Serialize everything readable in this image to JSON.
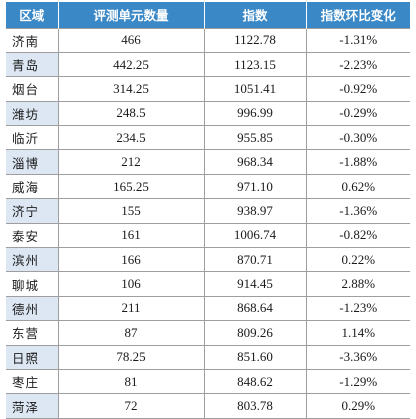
{
  "table": {
    "headers": [
      "区域",
      "评测单元数量",
      "指数",
      "指数环比变化"
    ],
    "rows": [
      [
        "济南",
        "466",
        "1122.78",
        "-1.31%"
      ],
      [
        "青岛",
        "442.25",
        "1123.15",
        "-2.23%"
      ],
      [
        "烟台",
        "314.25",
        "1051.41",
        "-0.92%"
      ],
      [
        "潍坊",
        "248.5",
        "996.99",
        "-0.29%"
      ],
      [
        "临沂",
        "234.5",
        "955.85",
        "-0.30%"
      ],
      [
        "淄博",
        "212",
        "968.34",
        "-1.88%"
      ],
      [
        "威海",
        "165.25",
        "971.10",
        "0.62%"
      ],
      [
        "济宁",
        "155",
        "938.97",
        "-1.36%"
      ],
      [
        "泰安",
        "161",
        "1006.74",
        "-0.82%"
      ],
      [
        "滨州",
        "166",
        "870.71",
        "0.22%"
      ],
      [
        "聊城",
        "106",
        "914.45",
        "2.88%"
      ],
      [
        "德州",
        "211",
        "868.64",
        "-1.23%"
      ],
      [
        "东营",
        "87",
        "809.26",
        "1.14%"
      ],
      [
        "日照",
        "78.25",
        "851.60",
        "-3.36%"
      ],
      [
        "枣庄",
        "81",
        "848.62",
        "-1.29%"
      ],
      [
        "菏泽",
        "72",
        "803.78",
        "0.29%"
      ]
    ]
  },
  "colors": {
    "header_bg": "#3b88c6",
    "header_text": "#ffffff",
    "stripe_bg": "#dce7f3",
    "grid_line": "#9e9e9e"
  }
}
